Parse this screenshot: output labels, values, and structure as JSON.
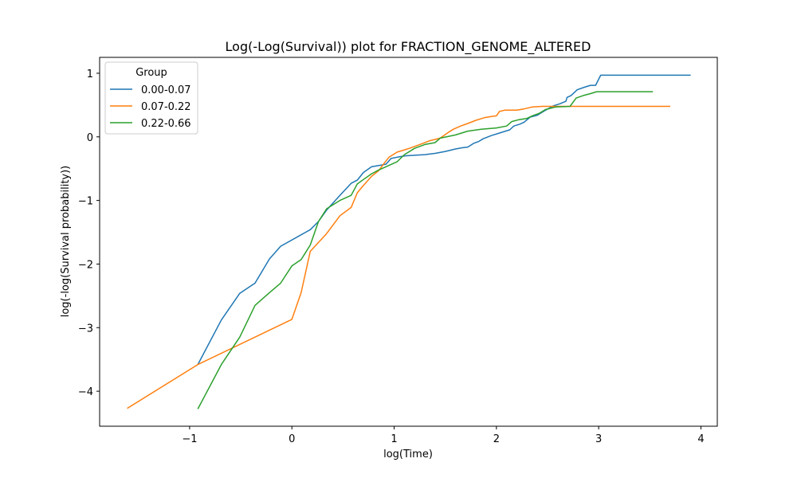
{
  "chart_data": {
    "type": "line",
    "title": "Log(-Log(Survival)) plot for FRACTION_GENOME_ALTERED",
    "xlabel": "log(Time)",
    "ylabel": "log(-log(Survival probability))",
    "xlim": [
      -1.88,
      4.16
    ],
    "ylim": [
      -4.55,
      1.25
    ],
    "xticks": [
      -1,
      0,
      1,
      2,
      3,
      4
    ],
    "xtick_labels": [
      "−1",
      "0",
      "1",
      "2",
      "3",
      "4"
    ],
    "yticks": [
      -4,
      -3,
      -2,
      -1,
      0,
      1
    ],
    "ytick_labels": [
      "−4",
      "−3",
      "−2",
      "−1",
      "0",
      "1"
    ],
    "grid": false,
    "legend": {
      "title": "Group",
      "placement": "top-left"
    },
    "series": [
      {
        "name": "0.00-0.07",
        "color": "#1f77b4",
        "x": [
          -0.92,
          -0.69,
          -0.51,
          -0.36,
          -0.22,
          -0.11,
          0.18,
          0.26,
          0.34,
          0.47,
          0.58,
          0.64,
          0.7,
          0.78,
          0.85,
          0.92,
          0.97,
          1.03,
          1.1,
          1.2,
          1.3,
          1.4,
          1.5,
          1.6,
          1.67,
          1.72,
          1.78,
          1.83,
          1.87,
          1.95,
          2.03,
          2.13,
          2.17,
          2.23,
          2.27,
          2.33,
          2.4,
          2.48,
          2.56,
          2.62,
          2.68,
          2.69,
          2.73,
          2.79,
          2.86,
          2.92,
          2.97,
          3.02,
          3.9
        ],
        "y": [
          -3.58,
          -2.88,
          -2.46,
          -2.3,
          -1.92,
          -1.72,
          -1.46,
          -1.33,
          -1.15,
          -0.92,
          -0.73,
          -0.68,
          -0.56,
          -0.47,
          -0.45,
          -0.43,
          -0.34,
          -0.32,
          -0.3,
          -0.29,
          -0.28,
          -0.26,
          -0.23,
          -0.19,
          -0.17,
          -0.16,
          -0.1,
          -0.07,
          -0.03,
          0.02,
          0.06,
          0.11,
          0.17,
          0.2,
          0.23,
          0.31,
          0.34,
          0.42,
          0.49,
          0.52,
          0.56,
          0.62,
          0.65,
          0.74,
          0.78,
          0.81,
          0.81,
          0.97,
          0.97
        ]
      },
      {
        "name": "0.07-0.22",
        "color": "#ff7f0e",
        "x": [
          -1.61,
          -0.92,
          0.0,
          0.09,
          0.18,
          0.34,
          0.47,
          0.58,
          0.64,
          0.69,
          0.78,
          0.85,
          0.9,
          0.95,
          1.03,
          1.15,
          1.25,
          1.35,
          1.45,
          1.53,
          1.58,
          1.65,
          1.72,
          1.8,
          1.88,
          1.95,
          2.0,
          2.03,
          2.08,
          2.15,
          2.2,
          2.27,
          2.35,
          2.45,
          3.7
        ],
        "y": [
          -4.27,
          -3.58,
          -2.87,
          -2.45,
          -1.8,
          -1.52,
          -1.24,
          -1.11,
          -0.88,
          -0.78,
          -0.62,
          -0.53,
          -0.42,
          -0.32,
          -0.24,
          -0.18,
          -0.12,
          -0.06,
          -0.02,
          0.07,
          0.12,
          0.17,
          0.21,
          0.26,
          0.3,
          0.32,
          0.33,
          0.4,
          0.42,
          0.42,
          0.42,
          0.44,
          0.47,
          0.48,
          0.48
        ]
      },
      {
        "name": "0.22-0.66",
        "color": "#2ca02c",
        "x": [
          -0.92,
          -0.69,
          -0.51,
          -0.36,
          -0.22,
          -0.11,
          0.0,
          0.09,
          0.18,
          0.26,
          0.34,
          0.47,
          0.58,
          0.64,
          0.7,
          0.78,
          0.85,
          0.92,
          1.03,
          1.1,
          1.2,
          1.3,
          1.4,
          1.45,
          1.6,
          1.72,
          1.85,
          2.0,
          2.1,
          2.15,
          2.22,
          2.3,
          2.35,
          2.42,
          2.48,
          2.58,
          2.72,
          2.78,
          2.85,
          2.92,
          2.98,
          3.53
        ],
        "y": [
          -4.28,
          -3.58,
          -3.15,
          -2.65,
          -2.45,
          -2.3,
          -2.03,
          -1.93,
          -1.7,
          -1.33,
          -1.13,
          -1.0,
          -0.92,
          -0.74,
          -0.67,
          -0.58,
          -0.52,
          -0.47,
          -0.39,
          -0.28,
          -0.18,
          -0.12,
          -0.09,
          -0.02,
          0.03,
          0.09,
          0.12,
          0.14,
          0.17,
          0.24,
          0.27,
          0.29,
          0.33,
          0.37,
          0.43,
          0.47,
          0.48,
          0.61,
          0.65,
          0.68,
          0.71,
          0.71
        ]
      }
    ]
  }
}
